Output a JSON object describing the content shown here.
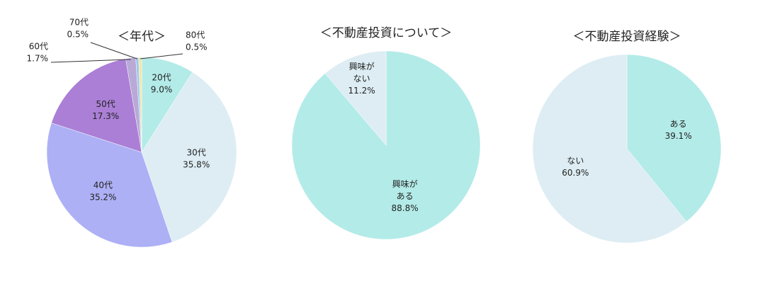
{
  "chart_data": [
    {
      "type": "pie",
      "title": "＜年代＞",
      "categories": [
        "20代",
        "30代",
        "40代",
        "50代",
        "60代",
        "70代",
        "80代"
      ],
      "values": [
        9.0,
        35.8,
        35.2,
        17.3,
        1.7,
        0.5,
        0.5
      ],
      "value_labels": [
        "9.0%",
        "35.8%",
        "35.2%",
        "17.3%",
        "1.7%",
        "0.5%",
        "0.5%"
      ],
      "colors": [
        "#b3ebe8",
        "#ddedf3",
        "#adb0f5",
        "#ab7fd6",
        "#b8a9d6",
        "#9ec8ee",
        "#f2e6a2"
      ]
    },
    {
      "type": "pie",
      "title": "＜不動産投資について＞",
      "categories": [
        [
          "興味が",
          "ある"
        ],
        [
          "興味が",
          "ない"
        ]
      ],
      "values": [
        88.8,
        11.2
      ],
      "value_labels": [
        "88.8%",
        "11.2%"
      ],
      "colors": [
        "#b3ebe8",
        "#ddedf3"
      ]
    },
    {
      "type": "pie",
      "title": "＜不動産投資経験＞",
      "categories": [
        "ある",
        "ない"
      ],
      "values": [
        39.1,
        60.9
      ],
      "value_labels": [
        "39.1%",
        "60.9%"
      ],
      "colors": [
        "#b3ebe8",
        "#ddedf3"
      ]
    }
  ]
}
